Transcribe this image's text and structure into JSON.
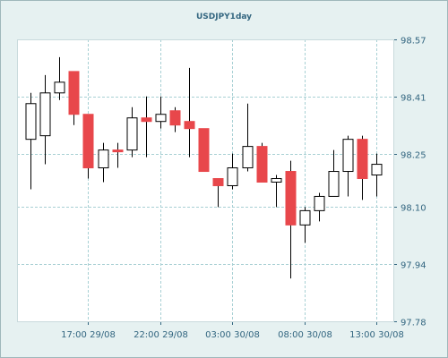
{
  "chart_data": {
    "type": "candlestick",
    "title": "USDJPY1day",
    "ylim": [
      97.78,
      98.57
    ],
    "yticks": [
      "98.57",
      "98.41",
      "98.25",
      "98.10",
      "97.94",
      "97.78"
    ],
    "xticks": [
      {
        "index": 4,
        "label": "17:00 29/08"
      },
      {
        "index": 9,
        "label": "22:00 29/08"
      },
      {
        "index": 14,
        "label": "03:00 30/08"
      },
      {
        "index": 19,
        "label": "08:00 30/08"
      },
      {
        "index": 24,
        "label": "13:00 30/08"
      }
    ],
    "grid": true,
    "colors": {
      "up": "#ffffff",
      "down": "#e8474b",
      "wick": "#000000",
      "grid": "#a8d0d4",
      "axis": "#336680"
    },
    "candles": [
      {
        "open": 98.29,
        "high": 98.42,
        "low": 98.15,
        "close": 98.39
      },
      {
        "open": 98.3,
        "high": 98.47,
        "low": 98.22,
        "close": 98.42
      },
      {
        "open": 98.42,
        "high": 98.52,
        "low": 98.4,
        "close": 98.45
      },
      {
        "open": 98.48,
        "high": 98.48,
        "low": 98.33,
        "close": 98.36
      },
      {
        "open": 98.36,
        "high": 98.36,
        "low": 98.18,
        "close": 98.21
      },
      {
        "open": 98.21,
        "high": 98.28,
        "low": 98.17,
        "close": 98.26
      },
      {
        "open": 98.26,
        "high": 98.28,
        "low": 98.21,
        "close": 98.255
      },
      {
        "open": 98.26,
        "high": 98.38,
        "low": 98.24,
        "close": 98.35
      },
      {
        "open": 98.35,
        "high": 98.41,
        "low": 98.24,
        "close": 98.34
      },
      {
        "open": 98.34,
        "high": 98.41,
        "low": 98.32,
        "close": 98.36
      },
      {
        "open": 98.37,
        "high": 98.38,
        "low": 98.31,
        "close": 98.33
      },
      {
        "open": 98.34,
        "high": 98.49,
        "low": 98.24,
        "close": 98.32
      },
      {
        "open": 98.32,
        "high": 98.32,
        "low": 98.2,
        "close": 98.2
      },
      {
        "open": 98.18,
        "high": 98.18,
        "low": 98.1,
        "close": 98.16
      },
      {
        "open": 98.16,
        "high": 98.25,
        "low": 98.15,
        "close": 98.21
      },
      {
        "open": 98.21,
        "high": 98.39,
        "low": 98.2,
        "close": 98.27
      },
      {
        "open": 98.27,
        "high": 98.28,
        "low": 98.17,
        "close": 98.17
      },
      {
        "open": 98.17,
        "high": 98.19,
        "low": 98.1,
        "close": 98.18
      },
      {
        "open": 98.2,
        "high": 98.23,
        "low": 97.9,
        "close": 98.05
      },
      {
        "open": 98.05,
        "high": 98.1,
        "low": 98.0,
        "close": 98.09
      },
      {
        "open": 98.09,
        "high": 98.14,
        "low": 98.06,
        "close": 98.13
      },
      {
        "open": 98.13,
        "high": 98.26,
        "low": 98.13,
        "close": 98.2
      },
      {
        "open": 98.2,
        "high": 98.3,
        "low": 98.13,
        "close": 98.29
      },
      {
        "open": 98.29,
        "high": 98.3,
        "low": 98.12,
        "close": 98.18
      },
      {
        "open": 98.19,
        "high": 98.25,
        "low": 98.13,
        "close": 98.22
      }
    ]
  }
}
